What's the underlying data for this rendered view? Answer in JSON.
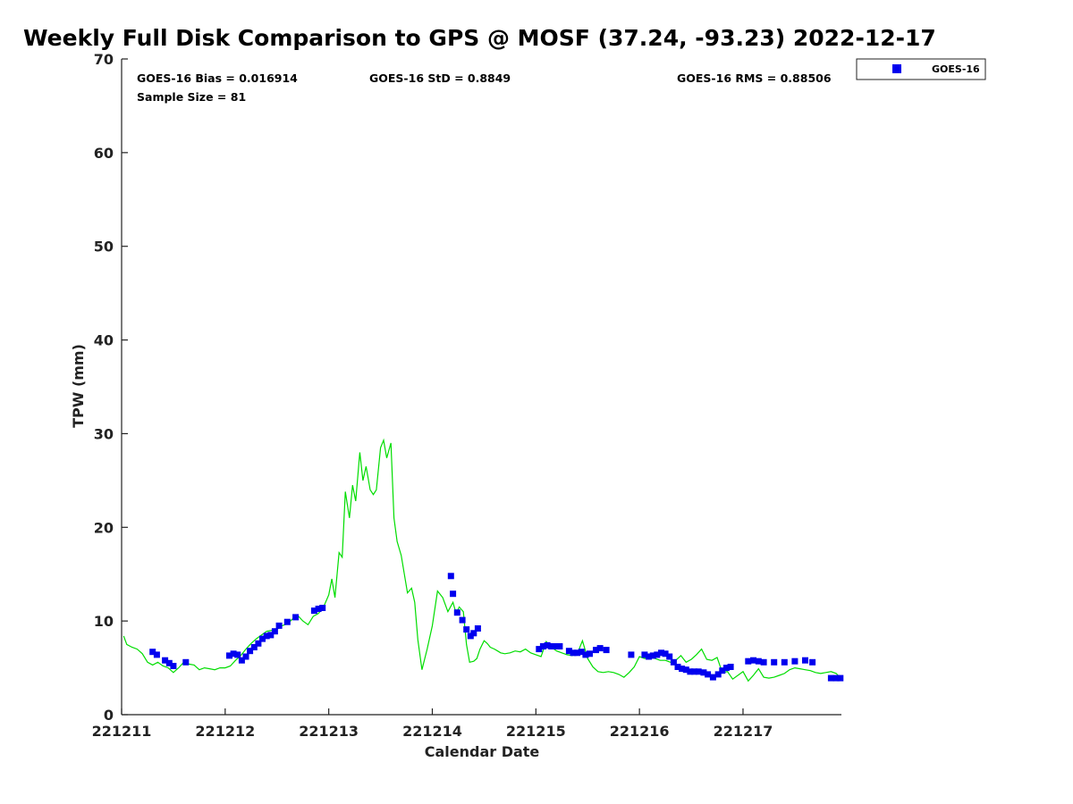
{
  "chart_data": {
    "type": "scatter",
    "title": "Weekly Full Disk Comparison to GPS @ MOSF (37.24, -93.23) 2022-12-17",
    "xlabel": "Calendar Date",
    "ylabel": "TPW (mm)",
    "xlim": [
      0,
      6.95
    ],
    "ylim": [
      0,
      70
    ],
    "x_ticks": [
      {
        "value": 0,
        "label": "221211"
      },
      {
        "value": 1,
        "label": "221212"
      },
      {
        "value": 2,
        "label": "221213"
      },
      {
        "value": 3,
        "label": "221214"
      },
      {
        "value": 4,
        "label": "221215"
      },
      {
        "value": 5,
        "label": "221216"
      },
      {
        "value": 6,
        "label": "221217"
      }
    ],
    "y_ticks": [
      {
        "value": 0,
        "label": "0"
      },
      {
        "value": 10,
        "label": "10"
      },
      {
        "value": 20,
        "label": "20"
      },
      {
        "value": 30,
        "label": "30"
      },
      {
        "value": 40,
        "label": "40"
      },
      {
        "value": 50,
        "label": "50"
      },
      {
        "value": 60,
        "label": "60"
      },
      {
        "value": 70,
        "label": "70"
      }
    ],
    "stats": {
      "bias": "GOES-16 Bias = 0.016914",
      "std": "GOES-16 StD = 0.8849",
      "rms": "GOES-16 RMS = 0.88506",
      "sample": "Sample Size = 81"
    },
    "legend": {
      "label": "GOES-16",
      "position": "top-right"
    },
    "colors": {
      "goes": "#0000ee",
      "gps": "#00dd00"
    },
    "series": [
      {
        "name": "GOES-16",
        "kind": "scatter",
        "x": [
          0.3,
          0.34,
          0.42,
          0.46,
          0.5,
          0.62,
          1.04,
          1.08,
          1.12,
          1.16,
          1.2,
          1.24,
          1.28,
          1.32,
          1.36,
          1.4,
          1.44,
          1.48,
          1.52,
          1.6,
          1.68,
          1.86,
          1.9,
          1.94,
          3.18,
          3.2,
          3.24,
          3.29,
          3.33,
          3.37,
          3.4,
          3.44,
          4.03,
          4.07,
          4.11,
          4.15,
          4.19,
          4.23,
          4.32,
          4.36,
          4.4,
          4.44,
          4.48,
          4.52,
          4.58,
          4.62,
          4.68,
          4.92,
          5.05,
          5.09,
          5.13,
          5.17,
          5.21,
          5.25,
          5.29,
          5.33,
          5.37,
          5.41,
          5.45,
          5.49,
          5.53,
          5.57,
          5.62,
          5.66,
          5.71,
          5.76,
          5.8,
          5.84,
          5.88,
          6.05,
          6.1,
          6.15,
          6.2,
          6.3,
          6.4,
          6.5,
          6.6,
          6.67,
          6.85,
          6.9,
          6.94
        ],
        "y": [
          6.7,
          6.4,
          5.8,
          5.5,
          5.2,
          5.6,
          6.3,
          6.5,
          6.4,
          5.8,
          6.2,
          6.8,
          7.2,
          7.6,
          8.1,
          8.4,
          8.5,
          8.9,
          9.5,
          9.9,
          10.4,
          11.1,
          11.3,
          11.4,
          14.8,
          12.9,
          10.9,
          10.1,
          9.1,
          8.4,
          8.7,
          9.2,
          7.0,
          7.3,
          7.4,
          7.3,
          7.3,
          7.3,
          6.8,
          6.6,
          6.6,
          6.7,
          6.4,
          6.5,
          6.9,
          7.1,
          6.9,
          6.4,
          6.4,
          6.2,
          6.3,
          6.4,
          6.6,
          6.5,
          6.2,
          5.6,
          5.1,
          4.9,
          4.8,
          4.6,
          4.6,
          4.6,
          4.5,
          4.3,
          4.0,
          4.3,
          4.7,
          5.0,
          5.1,
          5.7,
          5.8,
          5.7,
          5.6,
          5.6,
          5.6,
          5.7,
          5.8,
          5.6,
          3.9,
          3.9,
          3.9
        ]
      },
      {
        "name": "GPS",
        "kind": "line",
        "x": [
          0.02,
          0.05,
          0.1,
          0.15,
          0.2,
          0.25,
          0.3,
          0.35,
          0.4,
          0.45,
          0.5,
          0.55,
          0.6,
          0.65,
          0.7,
          0.75,
          0.8,
          0.85,
          0.9,
          0.95,
          1.0,
          1.05,
          1.1,
          1.15,
          1.2,
          1.25,
          1.3,
          1.35,
          1.4,
          1.45,
          1.5,
          1.55,
          1.6,
          1.65,
          1.7,
          1.75,
          1.8,
          1.85,
          1.9,
          1.95,
          2.0,
          2.03,
          2.06,
          2.1,
          2.13,
          2.16,
          2.2,
          2.23,
          2.26,
          2.3,
          2.33,
          2.36,
          2.4,
          2.43,
          2.46,
          2.5,
          2.53,
          2.56,
          2.6,
          2.63,
          2.66,
          2.7,
          2.73,
          2.76,
          2.8,
          2.83,
          2.86,
          2.9,
          2.95,
          3.0,
          3.05,
          3.1,
          3.15,
          3.2,
          3.23,
          3.26,
          3.3,
          3.33,
          3.36,
          3.4,
          3.43,
          3.46,
          3.5,
          3.53,
          3.56,
          3.6,
          3.63,
          3.66,
          3.7,
          3.75,
          3.8,
          3.85,
          3.9,
          3.95,
          4.0,
          4.05,
          4.1,
          4.15,
          4.2,
          4.25,
          4.3,
          4.35,
          4.4,
          4.45,
          4.5,
          4.55,
          4.6,
          4.65,
          4.7,
          4.75,
          4.8,
          4.85,
          4.9,
          4.95,
          5.0,
          5.05,
          5.1,
          5.15,
          5.2,
          5.25,
          5.3,
          5.35,
          5.4,
          5.45,
          5.5,
          5.55,
          5.6,
          5.65,
          5.7,
          5.75,
          5.8,
          5.85,
          5.9,
          5.95,
          6.0,
          6.05,
          6.1,
          6.15,
          6.2,
          6.25,
          6.3,
          6.35,
          6.4,
          6.45,
          6.5,
          6.55,
          6.6,
          6.65,
          6.7,
          6.75,
          6.8,
          6.85,
          6.9,
          6.95
        ],
        "y": [
          8.4,
          7.5,
          7.2,
          7.0,
          6.5,
          5.6,
          5.3,
          5.6,
          5.2,
          5.0,
          4.5,
          5.0,
          5.6,
          5.4,
          5.3,
          4.8,
          5.0,
          4.9,
          4.8,
          5.0,
          5.0,
          5.2,
          5.8,
          6.3,
          7.0,
          7.6,
          8.1,
          8.5,
          8.9,
          9.0,
          9.1,
          9.5,
          9.7,
          10.2,
          10.6,
          10.0,
          9.6,
          10.5,
          10.8,
          11.5,
          12.8,
          14.5,
          12.5,
          17.3,
          16.8,
          23.8,
          21.0,
          24.5,
          22.8,
          28.0,
          25.0,
          26.5,
          24.0,
          23.5,
          24.0,
          28.5,
          29.3,
          27.4,
          29.0,
          21.0,
          18.5,
          17.0,
          15.0,
          13.0,
          13.5,
          12.0,
          8.0,
          4.8,
          7.0,
          9.5,
          13.2,
          12.5,
          11.0,
          12.0,
          10.8,
          11.5,
          11.0,
          7.5,
          5.6,
          5.7,
          6.0,
          7.0,
          7.9,
          7.6,
          7.2,
          7.0,
          6.8,
          6.6,
          6.5,
          6.6,
          6.8,
          6.7,
          7.0,
          6.6,
          6.4,
          6.2,
          7.8,
          7.2,
          6.8,
          6.6,
          6.4,
          6.3,
          6.5,
          7.9,
          6.0,
          5.1,
          4.6,
          4.5,
          4.6,
          4.5,
          4.3,
          4.0,
          4.5,
          5.1,
          6.2,
          6.0,
          6.1,
          6.0,
          5.8,
          5.8,
          5.6,
          5.8,
          6.3,
          5.6,
          5.9,
          6.4,
          7.0,
          5.9,
          5.8,
          6.1,
          4.5,
          4.6,
          3.8,
          4.2,
          4.6,
          3.6,
          4.2,
          4.9,
          4.0,
          3.9,
          4.0,
          4.2,
          4.4,
          4.8,
          5.0,
          4.9,
          4.8,
          4.7,
          4.5,
          4.4,
          4.5,
          4.6,
          4.4,
          3.8
        ]
      }
    ]
  }
}
